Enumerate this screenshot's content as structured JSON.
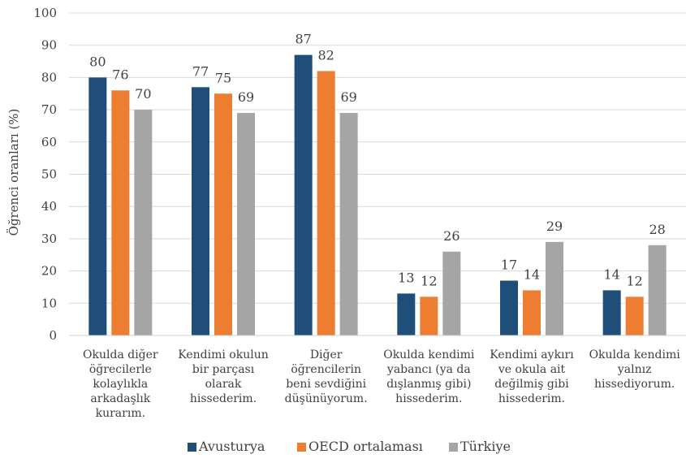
{
  "chart_data": {
    "type": "bar",
    "title": "",
    "xlabel": "",
    "ylabel": "Öğrenci oranları (%)",
    "ylim": [
      0,
      100
    ],
    "yticks": [
      0,
      10,
      20,
      30,
      40,
      50,
      60,
      70,
      80,
      90,
      100
    ],
    "grid": true,
    "legend_position": "bottom",
    "categories": [
      [
        "Okulda diğer",
        "öğrecilerle",
        "kolaylıkla",
        "arkadaşlık",
        "kurarım."
      ],
      [
        "Kendimi okulun",
        "bir parçası",
        "olarak",
        "hissederim."
      ],
      [
        "Diğer",
        "öğrencilerin",
        "beni sevdiğini",
        "düşünüyorum."
      ],
      [
        "Okulda kendimi",
        "yabancı (ya da",
        "dışlanmış gibi)",
        "hissederim."
      ],
      [
        "Kendimi aykırı",
        "ve okula ait",
        "değilmiş gibi",
        "hissederim."
      ],
      [
        "Okulda kendimi",
        "yalnız",
        "hissediyorum."
      ]
    ],
    "series": [
      {
        "name": "Avusturya",
        "color": "#1f4e79",
        "values": [
          80,
          77,
          87,
          13,
          17,
          14
        ]
      },
      {
        "name": "OECD ortalaması",
        "color": "#ed7d31",
        "values": [
          76,
          75,
          82,
          12,
          14,
          12
        ]
      },
      {
        "name": "Türkiye",
        "color": "#a5a5a5",
        "values": [
          70,
          69,
          69,
          26,
          29,
          28
        ]
      }
    ]
  }
}
